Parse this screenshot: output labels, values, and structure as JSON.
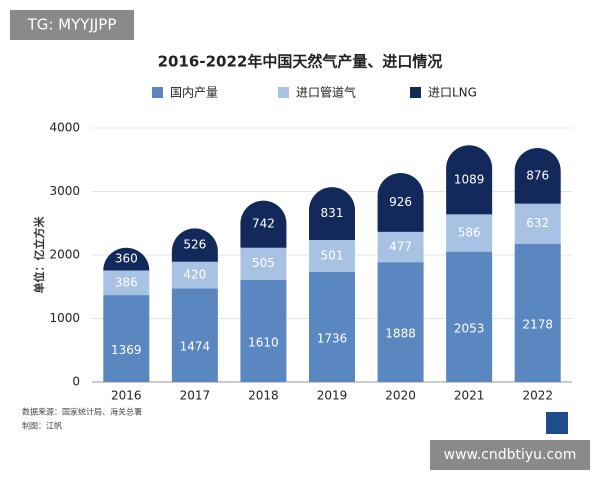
{
  "chart_data": {
    "type": "stacked-bar",
    "title": "2016-2022年中国天然气产量、进口情况",
    "y_label": "单位：亿立方米",
    "categories": [
      "2016",
      "2017",
      "2018",
      "2019",
      "2020",
      "2021",
      "2022"
    ],
    "series": [
      {
        "name": "国内产量",
        "color": "#5b87c0",
        "values": [
          1369,
          1474,
          1610,
          1736,
          1888,
          2053,
          2178
        ]
      },
      {
        "name": "进口管道气",
        "color": "#a8c2e3",
        "values": [
          386,
          420,
          505,
          501,
          477,
          586,
          632
        ]
      },
      {
        "name": "进口LNG",
        "color": "#13295c",
        "values": [
          360,
          526,
          742,
          831,
          926,
          1089,
          876
        ]
      }
    ],
    "ylim": [
      0,
      4000
    ],
    "yticks": [
      0,
      1000,
      2000,
      3000,
      4000
    ],
    "grid": true,
    "notes": [
      "数据来源：国家统计局、海关总署",
      "制图：江帆"
    ],
    "watermarks": [
      "TG: MYYJJPP",
      "www.cndbtiyu.com"
    ]
  }
}
